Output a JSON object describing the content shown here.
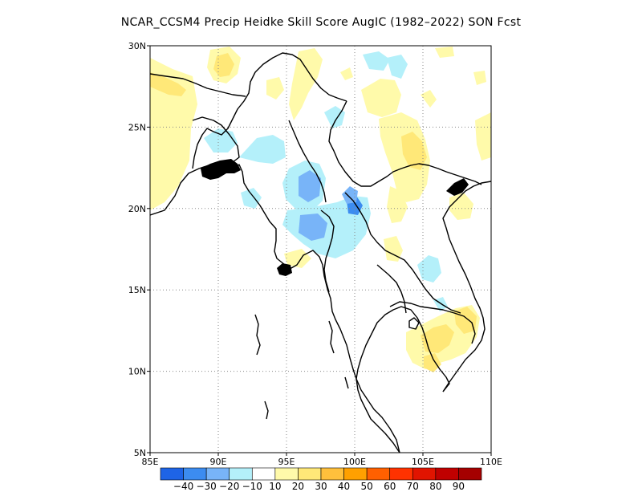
{
  "title": "NCAR_CCSM4 Precip Heidke Skill Score AugIC (1982–2022) SON Fcst",
  "map": {
    "lon_range": [
      85,
      110
    ],
    "lat_range": [
      5,
      30
    ],
    "lon_ticks": [
      "85E",
      "90E",
      "95E",
      "100E",
      "105E",
      "110E"
    ],
    "lat_ticks": [
      "5N",
      "10N",
      "15N",
      "20N",
      "25N",
      "30N"
    ],
    "gridlines": "dotted",
    "coastline_color": "#000000"
  },
  "colorbar": {
    "colors": [
      "#1e64e6",
      "#3c8cf0",
      "#78b4f8",
      "#b4f0fa",
      "#ffffff",
      "#fffaaa",
      "#ffe878",
      "#ffc03c",
      "#ffa000",
      "#ff6000",
      "#ff3200",
      "#e11400",
      "#c00000",
      "#a50000"
    ],
    "labels": [
      "−40",
      "−30",
      "−20",
      "−10",
      "10",
      "20",
      "30",
      "40",
      "50",
      "60",
      "70",
      "80",
      "90"
    ]
  },
  "fields": {
    "palette": {
      "light_yellow": "#fffaaa",
      "yellow": "#ffe878",
      "light_blue": "#b4f0fa",
      "blue": "#78b4f8",
      "mid_blue": "#3c8cf0"
    }
  }
}
